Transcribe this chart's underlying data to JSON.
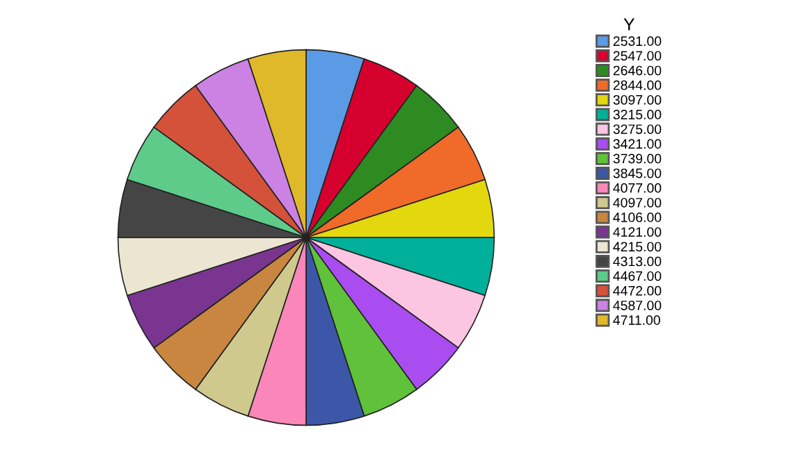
{
  "chart_data": {
    "type": "pie",
    "legend_title": "Y",
    "legend": "right",
    "categories": [
      "2531.00",
      "2547.00",
      "2646.00",
      "2844.00",
      "3097.00",
      "3215.00",
      "3275.00",
      "3421.00",
      "3739.00",
      "3845.00",
      "4077.00",
      "4097.00",
      "4106.00",
      "4121.00",
      "4215.00",
      "4313.00",
      "4467.00",
      "4472.00",
      "4587.00",
      "4711.00"
    ],
    "values": [
      5,
      5,
      5,
      5,
      5,
      5,
      5,
      5,
      5,
      5,
      5,
      5,
      5,
      5,
      5,
      5,
      5,
      5,
      5,
      5
    ],
    "colors": [
      "#5b9be6",
      "#d6002e",
      "#2e8b22",
      "#f06a2a",
      "#e3d70e",
      "#00b09a",
      "#fcc5e2",
      "#a94cf0",
      "#60c13a",
      "#3d57a8",
      "#fb86b9",
      "#cfc98e",
      "#c98640",
      "#7a3590",
      "#ece5d2",
      "#454545",
      "#5ecb8a",
      "#d4523a",
      "#cb82e3",
      "#e0b92a"
    ]
  }
}
